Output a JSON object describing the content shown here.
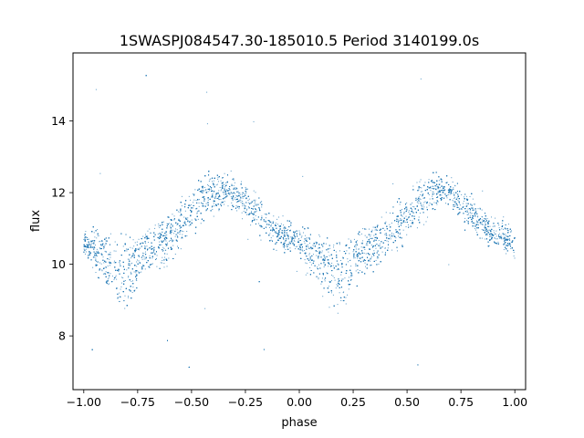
{
  "chart_data": {
    "type": "scatter",
    "title": "1SWASPJ084547.30-185010.5 Period 3140199.0s",
    "xlabel": "phase",
    "ylabel": "flux",
    "xlim": [
      -1.05,
      1.05
    ],
    "ylim": [
      6.5,
      15.9
    ],
    "xticks": [
      -1.0,
      -0.75,
      -0.5,
      -0.25,
      0.0,
      0.25,
      0.5,
      0.75,
      1.0
    ],
    "xtick_labels": [
      "−1.00",
      "−0.75",
      "−0.50",
      "−0.25",
      "0.00",
      "0.25",
      "0.50",
      "0.75",
      "1.00"
    ],
    "yticks": [
      8,
      10,
      12,
      14
    ],
    "ytick_labels": [
      "8",
      "10",
      "12",
      "14"
    ],
    "grid": false,
    "marker_color": "#1f77b4",
    "series": [
      {
        "x": [
          -1.0,
          -0.95,
          -0.9,
          -0.85,
          -0.8,
          -0.75,
          -0.7,
          -0.65,
          -0.6,
          -0.55,
          -0.5,
          -0.45,
          -0.4,
          -0.35,
          -0.3,
          -0.25,
          -0.2,
          -0.15,
          -0.1,
          -0.05,
          0.0,
          0.05,
          0.1,
          0.15,
          0.2,
          0.25,
          0.3,
          0.35,
          0.4,
          0.45,
          0.5,
          0.55,
          0.6,
          0.65,
          0.7,
          0.75,
          0.8,
          0.85,
          0.9,
          0.95,
          1.0
        ],
        "y_upper": [
          10.7,
          10.8,
          10.7,
          10.6,
          10.6,
          10.6,
          10.8,
          11.0,
          11.3,
          11.6,
          11.9,
          12.2,
          12.3,
          12.2,
          12.1,
          11.9,
          11.7,
          11.4,
          11.1,
          10.9,
          10.7,
          10.8,
          10.7,
          10.6,
          10.6,
          10.6,
          10.8,
          11.0,
          11.3,
          11.6,
          11.9,
          12.2,
          12.3,
          12.2,
          12.1,
          11.9,
          11.7,
          11.4,
          11.1,
          10.9,
          10.7
        ],
        "y_lower": [
          10.5,
          10.0,
          9.5,
          9.0,
          8.9,
          9.6,
          10.0,
          10.1,
          10.3,
          10.6,
          10.9,
          11.3,
          11.6,
          11.9,
          11.9,
          11.5,
          11.2,
          10.9,
          10.7,
          10.6,
          10.5,
          10.0,
          9.5,
          9.0,
          8.9,
          9.6,
          10.0,
          10.1,
          10.3,
          10.6,
          10.9,
          11.3,
          11.6,
          11.9,
          11.9,
          11.5,
          11.2,
          10.9,
          10.7,
          10.6,
          10.5
        ]
      }
    ]
  }
}
